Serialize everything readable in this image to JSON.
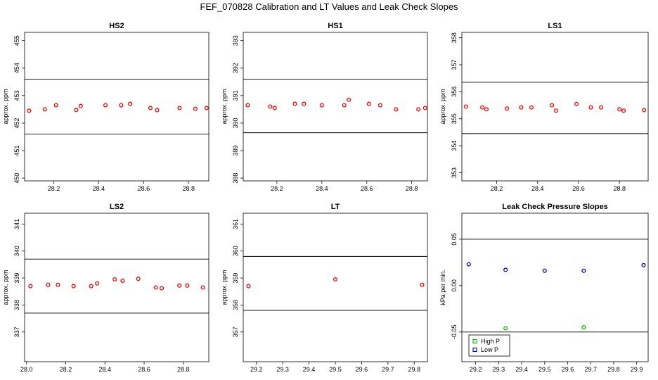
{
  "figure_title": "FEF_070828  Calibration and LT Values and Leak Check Slopes",
  "chart_data": [
    {
      "type": "scatter",
      "title": "HS2",
      "ylabel": "approx. ppm",
      "xlim": [
        28.07,
        28.89
      ],
      "ylim": [
        449.9,
        455.3
      ],
      "x_ticks": [
        28.2,
        28.4,
        28.6,
        28.8
      ],
      "x_tick_labels": [
        "28.2",
        "28.4",
        "28.6",
        "28.8"
      ],
      "y_ticks": [
        450,
        451,
        452,
        453,
        454,
        455
      ],
      "y_tick_labels": [
        "450",
        "451",
        "452",
        "453",
        "454",
        "455"
      ],
      "hlines": [
        453.6,
        451.6
      ],
      "series": [
        {
          "color": "#ff0000",
          "marker": "circle",
          "x": [
            28.09,
            28.16,
            28.21,
            28.3,
            28.32,
            28.43,
            28.5,
            28.54,
            28.63,
            28.66,
            28.76,
            28.83,
            28.88
          ],
          "y": [
            452.45,
            452.5,
            452.65,
            452.48,
            452.62,
            452.65,
            452.65,
            452.7,
            452.55,
            452.47,
            452.55,
            452.52,
            452.55
          ]
        }
      ]
    },
    {
      "type": "scatter",
      "title": "HS1",
      "ylabel": "approx. ppm",
      "xlim": [
        28.05,
        28.87
      ],
      "ylim": [
        387.9,
        393.3
      ],
      "x_ticks": [
        28.2,
        28.4,
        28.6,
        28.8
      ],
      "x_tick_labels": [
        "28.2",
        "28.4",
        "28.6",
        "28.8"
      ],
      "y_ticks": [
        388,
        389,
        390,
        391,
        392,
        393
      ],
      "y_tick_labels": [
        "388",
        "389",
        "390",
        "391",
        "392",
        "393"
      ],
      "hlines": [
        391.6,
        389.65
      ],
      "series": [
        {
          "color": "#ff0000",
          "marker": "circle",
          "x": [
            28.07,
            28.17,
            28.19,
            28.28,
            28.32,
            28.4,
            28.5,
            28.52,
            28.61,
            28.66,
            28.73,
            28.83,
            28.86
          ],
          "y": [
            390.65,
            390.6,
            390.55,
            390.7,
            390.7,
            390.65,
            390.65,
            390.85,
            390.7,
            390.65,
            390.5,
            390.5,
            390.55
          ]
        }
      ]
    },
    {
      "type": "scatter",
      "title": "LS1",
      "ylabel": "approx. ppm",
      "xlim": [
        28.03,
        28.94
      ],
      "ylim": [
        352.7,
        358.2
      ],
      "x_ticks": [
        28.2,
        28.4,
        28.6,
        28.8
      ],
      "x_tick_labels": [
        "28.2",
        "28.4",
        "28.6",
        "28.8"
      ],
      "y_ticks": [
        353,
        354,
        355,
        356,
        357,
        358
      ],
      "y_tick_labels": [
        "353",
        "354",
        "355",
        "356",
        "357",
        "358"
      ],
      "hlines": [
        356.35,
        354.45
      ],
      "series": [
        {
          "color": "#ff0000",
          "marker": "circle",
          "x": [
            28.05,
            28.13,
            28.15,
            28.25,
            28.32,
            28.37,
            28.47,
            28.49,
            28.59,
            28.66,
            28.71,
            28.8,
            28.82,
            28.92
          ],
          "y": [
            355.45,
            355.42,
            355.35,
            355.38,
            355.42,
            355.42,
            355.5,
            355.3,
            355.55,
            355.42,
            355.42,
            355.35,
            355.3,
            355.32
          ]
        }
      ]
    },
    {
      "type": "scatter",
      "title": "LS2",
      "ylabel": "approx. ppm",
      "xlim": [
        27.99,
        28.93
      ],
      "ylim": [
        335.9,
        341.4
      ],
      "x_ticks": [
        28.0,
        28.2,
        28.4,
        28.6,
        28.8
      ],
      "x_tick_labels": [
        "28.0",
        "28.2",
        "28.4",
        "28.6",
        "28.8"
      ],
      "y_ticks": [
        337,
        338,
        339,
        340,
        341
      ],
      "y_tick_labels": [
        "337",
        "338",
        "339",
        "340",
        "341"
      ],
      "hlines": [
        339.7,
        337.7
      ],
      "series": [
        {
          "color": "#ff0000",
          "marker": "circle",
          "x": [
            28.02,
            28.11,
            28.16,
            28.24,
            28.33,
            28.36,
            28.45,
            28.49,
            28.57,
            28.66,
            28.69,
            28.78,
            28.82,
            28.9
          ],
          "y": [
            338.7,
            338.75,
            338.75,
            338.7,
            338.7,
            338.8,
            338.95,
            338.9,
            338.97,
            338.65,
            338.62,
            338.72,
            338.72,
            338.65
          ]
        }
      ]
    },
    {
      "type": "scatter",
      "title": "LT",
      "ylabel": "approx. ppm",
      "xlim": [
        29.15,
        29.85
      ],
      "ylim": [
        355.9,
        361.4
      ],
      "x_ticks": [
        29.2,
        29.3,
        29.4,
        29.5,
        29.6,
        29.7,
        29.8
      ],
      "x_tick_labels": [
        "29.2",
        "29.3",
        "29.4",
        "29.5",
        "29.6",
        "29.7",
        "29.8"
      ],
      "y_ticks": [
        357,
        358,
        359,
        360,
        361
      ],
      "y_tick_labels": [
        "357",
        "358",
        "359",
        "360",
        "361"
      ],
      "hlines": [
        359.8,
        357.8
      ],
      "series": [
        {
          "color": "#ff0000",
          "marker": "circle",
          "x": [
            29.17,
            29.5,
            29.83
          ],
          "y": [
            358.7,
            358.95,
            358.75
          ]
        }
      ]
    },
    {
      "type": "scatter",
      "title": "Leak Check Pressure Slopes",
      "ylabel": "kPa per min.",
      "xlim": [
        29.14,
        29.95
      ],
      "ylim": [
        -0.082,
        0.078
      ],
      "x_ticks": [
        29.2,
        29.3,
        29.4,
        29.5,
        29.6,
        29.7,
        29.8,
        29.9
      ],
      "x_tick_labels": [
        "29.2",
        "29.3",
        "29.4",
        "29.5",
        "29.6",
        "29.7",
        "29.8",
        "29.9"
      ],
      "y_ticks": [
        -0.05,
        0.0,
        0.05
      ],
      "y_tick_labels": [
        "-0.05",
        "0.00",
        "0.05"
      ],
      "hlines": [
        0.05,
        -0.05
      ],
      "legend": {
        "position": "bottom-left",
        "entries": [
          "High P",
          "Low P"
        ]
      },
      "series": [
        {
          "name": "High P",
          "color": "#00bb00",
          "marker": "circle",
          "x": [
            29.33,
            29.67
          ],
          "y": [
            -0.046,
            -0.045
          ]
        },
        {
          "name": "Low P",
          "color": "#0000cc",
          "marker": "circle",
          "x": [
            29.17,
            29.33,
            29.5,
            29.67,
            29.93
          ],
          "y": [
            0.023,
            0.017,
            0.016,
            0.016,
            0.022
          ]
        }
      ]
    }
  ]
}
